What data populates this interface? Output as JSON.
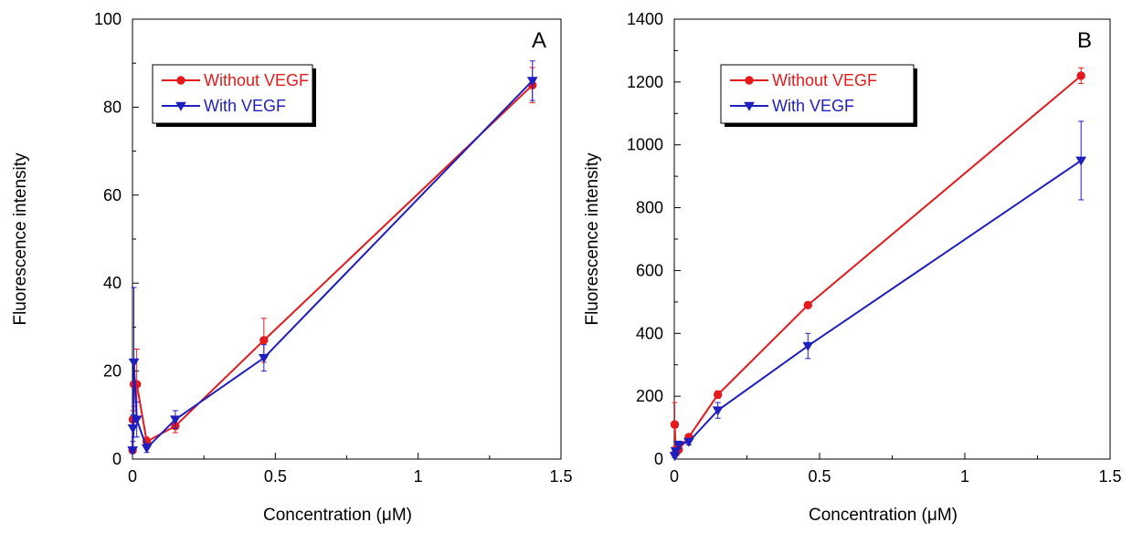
{
  "chart_data": [
    {
      "type": "line",
      "panel_label": "A",
      "xlabel": "Concentration (μM)",
      "ylabel": "Fluorescence intensity",
      "xlim": [
        0,
        1.5
      ],
      "ylim": [
        0,
        100
      ],
      "xticks": [
        0,
        0.5,
        1,
        1.5
      ],
      "xtick_labels": [
        "0",
        "0.5",
        "1",
        "1.5"
      ],
      "yticks": [
        0,
        20,
        40,
        60,
        80,
        100
      ],
      "ytick_labels": [
        "0",
        "20",
        "40",
        "60",
        "80",
        "100"
      ],
      "legend_position": "top-left",
      "grid": false,
      "series": [
        {
          "name": "Without VEGF",
          "color": "#e41a1c",
          "marker": "circle",
          "x": [
            0.0005,
            0.0015,
            0.005,
            0.015,
            0.05,
            0.15,
            0.46,
            1.4
          ],
          "y": [
            2,
            9,
            17,
            17,
            4,
            7.5,
            27,
            85
          ],
          "error": [
            0.5,
            2,
            5,
            8,
            1,
            1.5,
            5,
            4
          ]
        },
        {
          "name": "With VEGF",
          "color": "#1f1fbf",
          "marker": "triangle-down",
          "x": [
            0.0005,
            0.0015,
            0.005,
            0.015,
            0.05,
            0.15,
            0.46,
            1.4
          ],
          "y": [
            2,
            7,
            22,
            9,
            2.5,
            9,
            23,
            86
          ],
          "error": [
            0.5,
            3,
            17,
            4,
            1,
            2,
            3,
            4.5
          ]
        }
      ]
    },
    {
      "type": "line",
      "panel_label": "B",
      "xlabel": "Concentration (μM)",
      "ylabel": "Fluorescence intensity",
      "xlim": [
        0,
        1.5
      ],
      "ylim": [
        0,
        1400
      ],
      "xticks": [
        0,
        0.5,
        1,
        1.5
      ],
      "xtick_labels": [
        "0",
        "0.5",
        "1",
        "1.5"
      ],
      "yticks": [
        0,
        200,
        400,
        600,
        800,
        1000,
        1200,
        1400
      ],
      "ytick_labels": [
        "0",
        "200",
        "400",
        "600",
        "800",
        "1000",
        "1200",
        "1400"
      ],
      "legend_position": "top-left",
      "grid": false,
      "series": [
        {
          "name": "Without VEGF",
          "color": "#e41a1c",
          "marker": "circle",
          "x": [
            0.0015,
            0.005,
            0.015,
            0.05,
            0.15,
            0.46,
            1.4
          ],
          "y": [
            110,
            20,
            30,
            70,
            205,
            490,
            1220
          ],
          "error": [
            70,
            10,
            10,
            8,
            12,
            8,
            25
          ]
        },
        {
          "name": "With VEGF",
          "color": "#1f1fbf",
          "marker": "triangle-down",
          "x": [
            0.0015,
            0.005,
            0.015,
            0.05,
            0.15,
            0.46,
            1.4
          ],
          "y": [
            10,
            25,
            45,
            55,
            155,
            360,
            950
          ],
          "error": [
            5,
            10,
            12,
            10,
            25,
            40,
            125
          ]
        }
      ]
    }
  ]
}
